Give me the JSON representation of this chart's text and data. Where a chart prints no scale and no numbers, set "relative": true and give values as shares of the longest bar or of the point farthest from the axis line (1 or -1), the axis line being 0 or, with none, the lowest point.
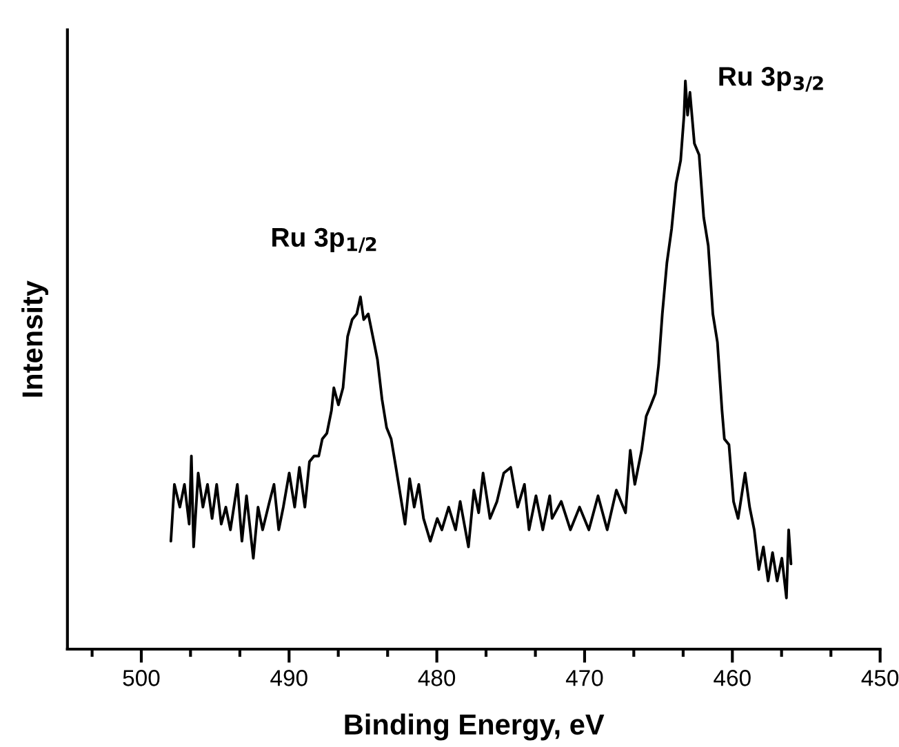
{
  "chart_data": {
    "type": "line",
    "relative": true,
    "xlabel": "Binding Energy, eV",
    "ylabel": "Intensity",
    "xlim": [
      505,
      450
    ],
    "xticks": [
      {
        "value": 503.33,
        "label": null
      },
      500,
      {
        "value": 496.67,
        "label": null
      },
      {
        "value": 493.33,
        "label": null
      },
      490,
      {
        "value": 486.67,
        "label": null
      },
      {
        "value": 483.33,
        "label": null
      },
      480,
      {
        "value": 476.67,
        "label": null
      },
      {
        "value": 473.33,
        "label": null
      },
      470,
      {
        "value": 466.67,
        "label": null
      },
      {
        "value": 463.33,
        "label": null
      },
      460,
      {
        "value": 456.67,
        "label": null
      },
      {
        "value": 453.33,
        "label": null
      },
      450
    ],
    "grid": false,
    "marker": "none",
    "line_style": "solid",
    "annotations": [
      "Ru 3p$_{1/2}$",
      "Ru 3p$_{3/2}$"
    ],
    "series": [
      {
        "color": "#000000",
        "x": [
          498.0,
          497.76,
          497.39,
          497.08,
          496.76,
          496.61,
          496.46,
          496.15,
          495.83,
          495.52,
          495.21,
          494.9,
          494.59,
          494.28,
          493.97,
          493.5,
          493.19,
          492.88,
          492.42,
          492.1,
          491.79,
          491.32,
          491.02,
          490.7,
          490.39,
          489.99,
          489.62,
          489.3,
          488.93,
          488.62,
          488.31,
          487.99,
          487.75,
          487.44,
          487.13,
          486.97,
          486.66,
          486.35,
          486.04,
          485.73,
          485.42,
          485.17,
          484.95,
          484.64,
          484.33,
          484.02,
          483.71,
          483.4,
          483.09,
          482.77,
          482.46,
          482.15,
          481.84,
          481.53,
          481.22,
          480.9,
          480.44,
          479.97,
          479.66,
          479.2,
          478.73,
          478.42,
          477.86,
          477.49,
          477.17,
          476.87,
          476.4,
          475.93,
          475.47,
          475.0,
          474.53,
          474.07,
          473.76,
          473.29,
          472.83,
          472.36,
          472.2,
          471.58,
          470.96,
          470.34,
          469.71,
          469.09,
          468.47,
          467.85,
          467.23,
          466.91,
          466.6,
          466.14,
          465.83,
          465.51,
          465.21,
          464.99,
          464.74,
          464.43,
          464.11,
          463.81,
          463.5,
          463.27,
          463.18,
          463.03,
          462.87,
          462.57,
          462.25,
          461.94,
          461.63,
          461.32,
          461.01,
          460.7,
          460.54,
          460.23,
          459.92,
          459.61,
          459.14,
          458.83,
          458.52,
          458.21,
          457.9,
          457.58,
          457.28,
          456.97,
          456.65,
          456.34,
          456.19,
          456.03
        ],
        "values": [
          0.19,
          0.29,
          0.25,
          0.29,
          0.22,
          0.34,
          0.18,
          0.31,
          0.25,
          0.29,
          0.23,
          0.29,
          0.22,
          0.25,
          0.21,
          0.29,
          0.19,
          0.27,
          0.16,
          0.25,
          0.21,
          0.26,
          0.29,
          0.21,
          0.25,
          0.31,
          0.25,
          0.32,
          0.25,
          0.33,
          0.34,
          0.34,
          0.37,
          0.38,
          0.42,
          0.46,
          0.43,
          0.46,
          0.55,
          0.58,
          0.59,
          0.62,
          0.58,
          0.59,
          0.55,
          0.51,
          0.44,
          0.39,
          0.37,
          0.32,
          0.27,
          0.22,
          0.3,
          0.25,
          0.29,
          0.23,
          0.19,
          0.23,
          0.21,
          0.25,
          0.21,
          0.26,
          0.18,
          0.28,
          0.24,
          0.31,
          0.23,
          0.26,
          0.31,
          0.32,
          0.25,
          0.29,
          0.21,
          0.27,
          0.21,
          0.27,
          0.23,
          0.26,
          0.21,
          0.25,
          0.21,
          0.27,
          0.21,
          0.28,
          0.24,
          0.35,
          0.29,
          0.35,
          0.41,
          0.43,
          0.45,
          0.5,
          0.59,
          0.68,
          0.74,
          0.82,
          0.86,
          0.94,
          1.0,
          0.94,
          0.98,
          0.89,
          0.87,
          0.76,
          0.71,
          0.59,
          0.54,
          0.42,
          0.37,
          0.36,
          0.26,
          0.23,
          0.31,
          0.25,
          0.21,
          0.14,
          0.18,
          0.12,
          0.17,
          0.12,
          0.16,
          0.09,
          0.21,
          0.15
        ]
      }
    ]
  }
}
